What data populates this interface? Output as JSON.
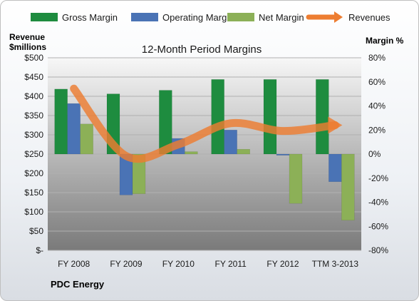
{
  "chart_data": {
    "type": "bar",
    "title": "12-Month Period Margins",
    "categories": [
      "FY 2008",
      "FY 2009",
      "FY 2010",
      "FY 2011",
      "FY 2012",
      "TTM 3-2013"
    ],
    "series": [
      {
        "name": "Gross Margin",
        "axis": "right",
        "color": "#1e8c3f",
        "values": [
          54,
          50,
          53,
          62,
          62,
          62
        ]
      },
      {
        "name": "Operating Margin",
        "axis": "right",
        "color": "#4a73b5",
        "values": [
          42,
          -34,
          13,
          20,
          -1,
          -23
        ]
      },
      {
        "name": "Net Margin",
        "axis": "right",
        "color": "#8cb057",
        "values": [
          25,
          -33,
          2,
          4,
          -41,
          -55
        ]
      },
      {
        "name": "Revenues",
        "axis": "left",
        "type": "line",
        "color": "#ed7d31",
        "values": [
          420,
          245,
          275,
          330,
          310,
          325
        ]
      }
    ],
    "left_axis": {
      "label_line1": "Revenue",
      "label_line2": "$millions",
      "ylim": [
        0,
        500
      ],
      "ticks": [
        "$-",
        "$50",
        "$100",
        "$150",
        "$200",
        "$250",
        "$300",
        "$350",
        "$400",
        "$450",
        "$500"
      ]
    },
    "right_axis": {
      "label": "Margin %",
      "ylim": [
        -80,
        80
      ],
      "ticks": [
        "-80%",
        "-60%",
        "-40%",
        "-20%",
        "0%",
        "20%",
        "40%",
        "60%",
        "80%"
      ]
    },
    "legend_position": "top",
    "grid": true,
    "footer": "PDC Energy"
  }
}
